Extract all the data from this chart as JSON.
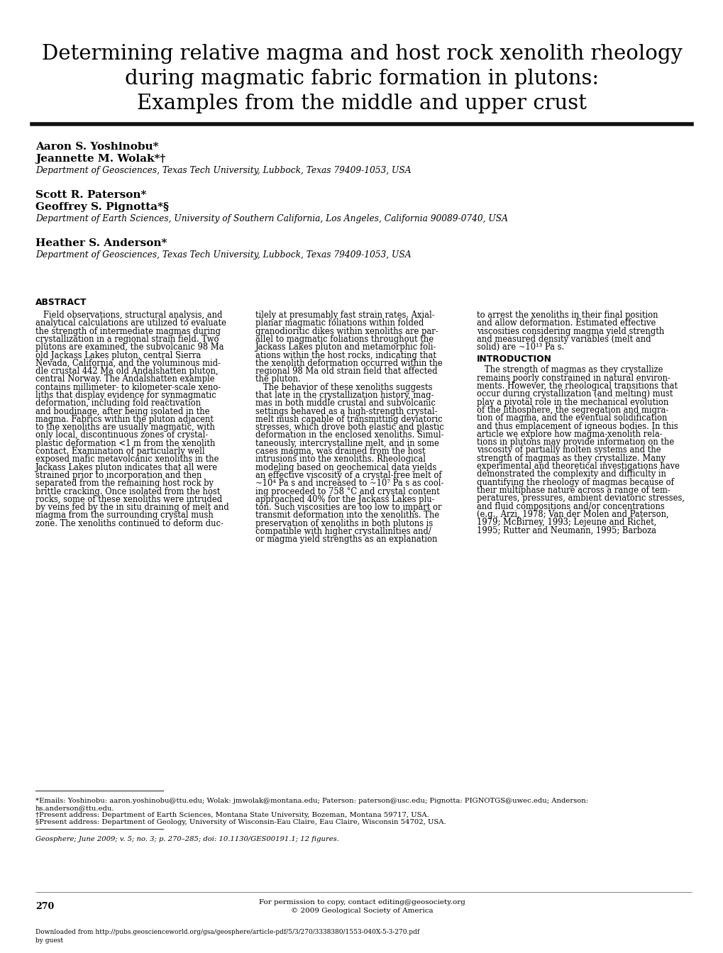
{
  "title_line1": "Determining relative magma and host rock xenolith rheology",
  "title_line2": "during magmatic fabric formation in plutons:",
  "title_line3": "Examples from the middle and upper crust",
  "authors_group1_line1": "Aaron S. Yoshinobu*",
  "authors_group1_line2": "Jeannette M. Wolak*†",
  "authors_group1_affil": "Department of Geosciences, Texas Tech University, Lubbock, Texas 79409-1053, USA",
  "authors_group2_line1": "Scott R. Paterson*",
  "authors_group2_line2": "Geoffrey S. Pignotta*§",
  "authors_group2_affil": "Department of Earth Sciences, University of Southern California, Los Angeles, California 90089-0740, USA",
  "authors_group3_line1": "Heather S. Anderson*",
  "authors_group3_affil": "Department of Geosciences, Texas Tech University, Lubbock, Texas 79409-1053, USA",
  "abstract_label": "ABSTRACT",
  "col1_lines": [
    "   Field observations, structural analysis, and",
    "analytical calculations are utilized to evaluate",
    "the strength of intermediate magmas during",
    "crystallization in a regional strain field. Two",
    "plutons are examined, the subvolcanic 98 Ma",
    "old Jackass Lakes pluton, central Sierra",
    "Nevada, California, and the voluminous mid-",
    "dle crustal 442 Ma old Andalshatten pluton,",
    "central Norway. The Andalshatten example",
    "contains millimeter- to kilometer-scale xeno-",
    "liths that display evidence for synmagmatic",
    "deformation, including fold reactivation",
    "and boudinage, after being isolated in the",
    "magma. Fabrics within the pluton adjacent",
    "to the xenoliths are usually magmatic, with",
    "only local, discontinuous zones of crystal-",
    "plastic deformation <1 m from the xenolith",
    "contact. Examination of particularly well",
    "exposed mafic metavolcanic xenoliths in the",
    "Jackass Lakes pluton indicates that all were",
    "strained prior to incorporation and then",
    "separated from the remaining host rock by",
    "brittle cracking. Once isolated from the host",
    "rocks, some of these xenoliths were intruded",
    "by veins fed by the in situ draining of melt and",
    "magma from the surrounding crystal mush",
    "zone. The xenoliths continued to deform duc-"
  ],
  "col2_lines": [
    "tilely at presumably fast strain rates. Axial-",
    "planar magmatic foliations within folded",
    "granodioritic dikes within xenoliths are par-",
    "allel to magmatic foliations throughout the",
    "Jackass Lakes pluton and metamorphic foli-",
    "ations within the host rocks, indicating that",
    "the xenolith deformation occurred within the",
    "regional 98 Ma old strain field that affected",
    "the pluton.",
    "   The behavior of these xenoliths suggests",
    "that late in the crystallization history, mag-",
    "mas in both middle crustal and subvolcanic",
    "settings behaved as a high-strength crystal-",
    "melt mush capable of transmitting deviatoric",
    "stresses, which drove both elastic and plastic",
    "deformation in the enclosed xenoliths. Simul-",
    "taneously, intercrystalline melt, and in some",
    "cases magma, was drained from the host",
    "intrusions into the xenoliths. Rheological",
    "modeling based on geochemical data yields",
    "an effective viscosity of a crystal-free melt of",
    "~10⁴ Pa s and increased to ~10⁷ Pa s as cool-",
    "ing proceeded to 758 °C and crystal content",
    "approached 40% for the Jackass Lakes plu-",
    "ton. Such viscosities are too low to impart or",
    "transmit deformation into the xenoliths. The",
    "preservation of xenoliths in both plutons is",
    "compatible with higher crystallinities and/",
    "or magma yield strengths as an explanation"
  ],
  "col3_lines_before_intro": [
    "to arrest the xenoliths in their final position",
    "and allow deformation. Estimated effective",
    "viscosities considering magma yield strength",
    "and measured density variables (melt and",
    "solid) are ~10¹³ Pa s."
  ],
  "intro_label": "INTRODUCTION",
  "col3_lines_after_intro": [
    "   The strength of magmas as they crystallize",
    "remains poorly constrained in natural environ-",
    "ments. However, the rheological transitions that",
    "occur during crystallization (and melting) must",
    "play a pivotal role in the mechanical evolution",
    "of the lithosphere, the segregation and migra-",
    "tion of magma, and the eventual solidification",
    "and thus emplacement of igneous bodies. In this",
    "article we explore how magma-xenolith rela-",
    "tions in plutons may provide information on the",
    "viscosity of partially molten systems and the",
    "strength of magmas as they crystallize. Many",
    "experimental and theoretical investigations have",
    "demonstrated the complexity and difficulty in",
    "quantifying the rheology of magmas because of",
    "their multiphase nature across a range of tem-",
    "peratures, pressures, ambient deviatoric stresses,",
    "and fluid compositions and/or concentrations",
    "(e.g., Arzi, 1978; Van der Molen and Paterson,",
    "1979; McBirney, 1993; Lejeune and Richet,",
    "1995; Rutter and Neumann, 1995; Barboza"
  ],
  "footnote_emails_line1": "*Emails: Yoshinobu: aaron.yoshinobu@ttu.edu; Wolak: jmwolak@montana.edu; Paterson: paterson@usc.edu; Pignotta: PIGNOTGS@uwec.edu; Anderson:",
  "footnote_emails_line2": "hs.anderson@ttu.edu.",
  "footnote_addr1": "†Present address: Department of Earth Sciences, Montana State University, Bozeman, Montana 59717, USA.",
  "footnote_addr2": "§Present address: Department of Geology, University of Wisconsin-Eau Claire, Eau Claire, Wisconsin 54702, USA.",
  "journal_ref": "Geosphere; June 2009; v. 5; no. 3; p. 270–285; doi: 10.1130/GES00191.1; 12 figures.",
  "page_number": "270",
  "footer_line1": "For permission to copy, contact editing@geosociety.org",
  "footer_line2": "© 2009 Geological Society of America",
  "footer_url": "Downloaded from http://pubs.geoscienceworld.org/gsa/geosphere/article-pdf/5/3/270/3338380/1553-040X-5-3-270.pdf",
  "footer_url2": "by guest",
  "bg_color": "#ffffff",
  "text_color": "#000000"
}
